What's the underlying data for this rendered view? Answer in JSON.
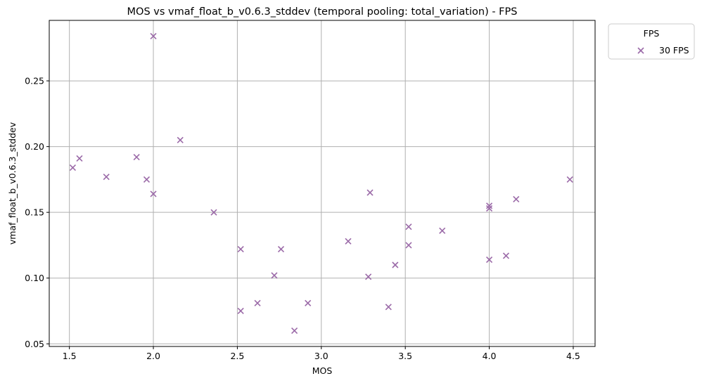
{
  "chart_data": {
    "type": "scatter",
    "title": "MOS vs vmaf_float_b_v0.6.3_stddev (temporal pooling: total_variation) - FPS",
    "xlabel": "MOS",
    "ylabel": "vmaf_float_b_v0.6.3_stddev",
    "xlim": [
      1.38,
      4.63
    ],
    "ylim": [
      0.048,
      0.296
    ],
    "xticks": [
      1.5,
      2.0,
      2.5,
      3.0,
      3.5,
      4.0,
      4.5
    ],
    "xtick_labels": [
      "1.5",
      "2.0",
      "2.5",
      "3.0",
      "3.5",
      "4.0",
      "4.5"
    ],
    "yticks": [
      0.05,
      0.1,
      0.15,
      0.2,
      0.25
    ],
    "ytick_labels": [
      "0.05",
      "0.10",
      "0.15",
      "0.20",
      "0.25"
    ],
    "grid": true,
    "legend_title": "FPS",
    "legend_position": "outside-top-right",
    "marker": "x",
    "series": [
      {
        "name": "30 FPS",
        "color": "#9b6aa8",
        "points": [
          {
            "x": 1.52,
            "y": 0.184
          },
          {
            "x": 1.56,
            "y": 0.191
          },
          {
            "x": 1.72,
            "y": 0.177
          },
          {
            "x": 1.9,
            "y": 0.192
          },
          {
            "x": 1.96,
            "y": 0.175
          },
          {
            "x": 2.0,
            "y": 0.284
          },
          {
            "x": 2.0,
            "y": 0.164
          },
          {
            "x": 2.16,
            "y": 0.205
          },
          {
            "x": 2.36,
            "y": 0.15
          },
          {
            "x": 2.52,
            "y": 0.122
          },
          {
            "x": 2.52,
            "y": 0.075
          },
          {
            "x": 2.62,
            "y": 0.081
          },
          {
            "x": 2.72,
            "y": 0.102
          },
          {
            "x": 2.76,
            "y": 0.122
          },
          {
            "x": 2.84,
            "y": 0.06
          },
          {
            "x": 2.92,
            "y": 0.081
          },
          {
            "x": 3.16,
            "y": 0.128
          },
          {
            "x": 3.28,
            "y": 0.101
          },
          {
            "x": 3.29,
            "y": 0.165
          },
          {
            "x": 3.4,
            "y": 0.078
          },
          {
            "x": 3.44,
            "y": 0.11
          },
          {
            "x": 3.52,
            "y": 0.139
          },
          {
            "x": 3.52,
            "y": 0.125
          },
          {
            "x": 3.72,
            "y": 0.136
          },
          {
            "x": 4.0,
            "y": 0.155
          },
          {
            "x": 4.0,
            "y": 0.153
          },
          {
            "x": 4.0,
            "y": 0.114
          },
          {
            "x": 4.1,
            "y": 0.117
          },
          {
            "x": 4.16,
            "y": 0.16
          },
          {
            "x": 4.48,
            "y": 0.175
          }
        ]
      }
    ]
  }
}
